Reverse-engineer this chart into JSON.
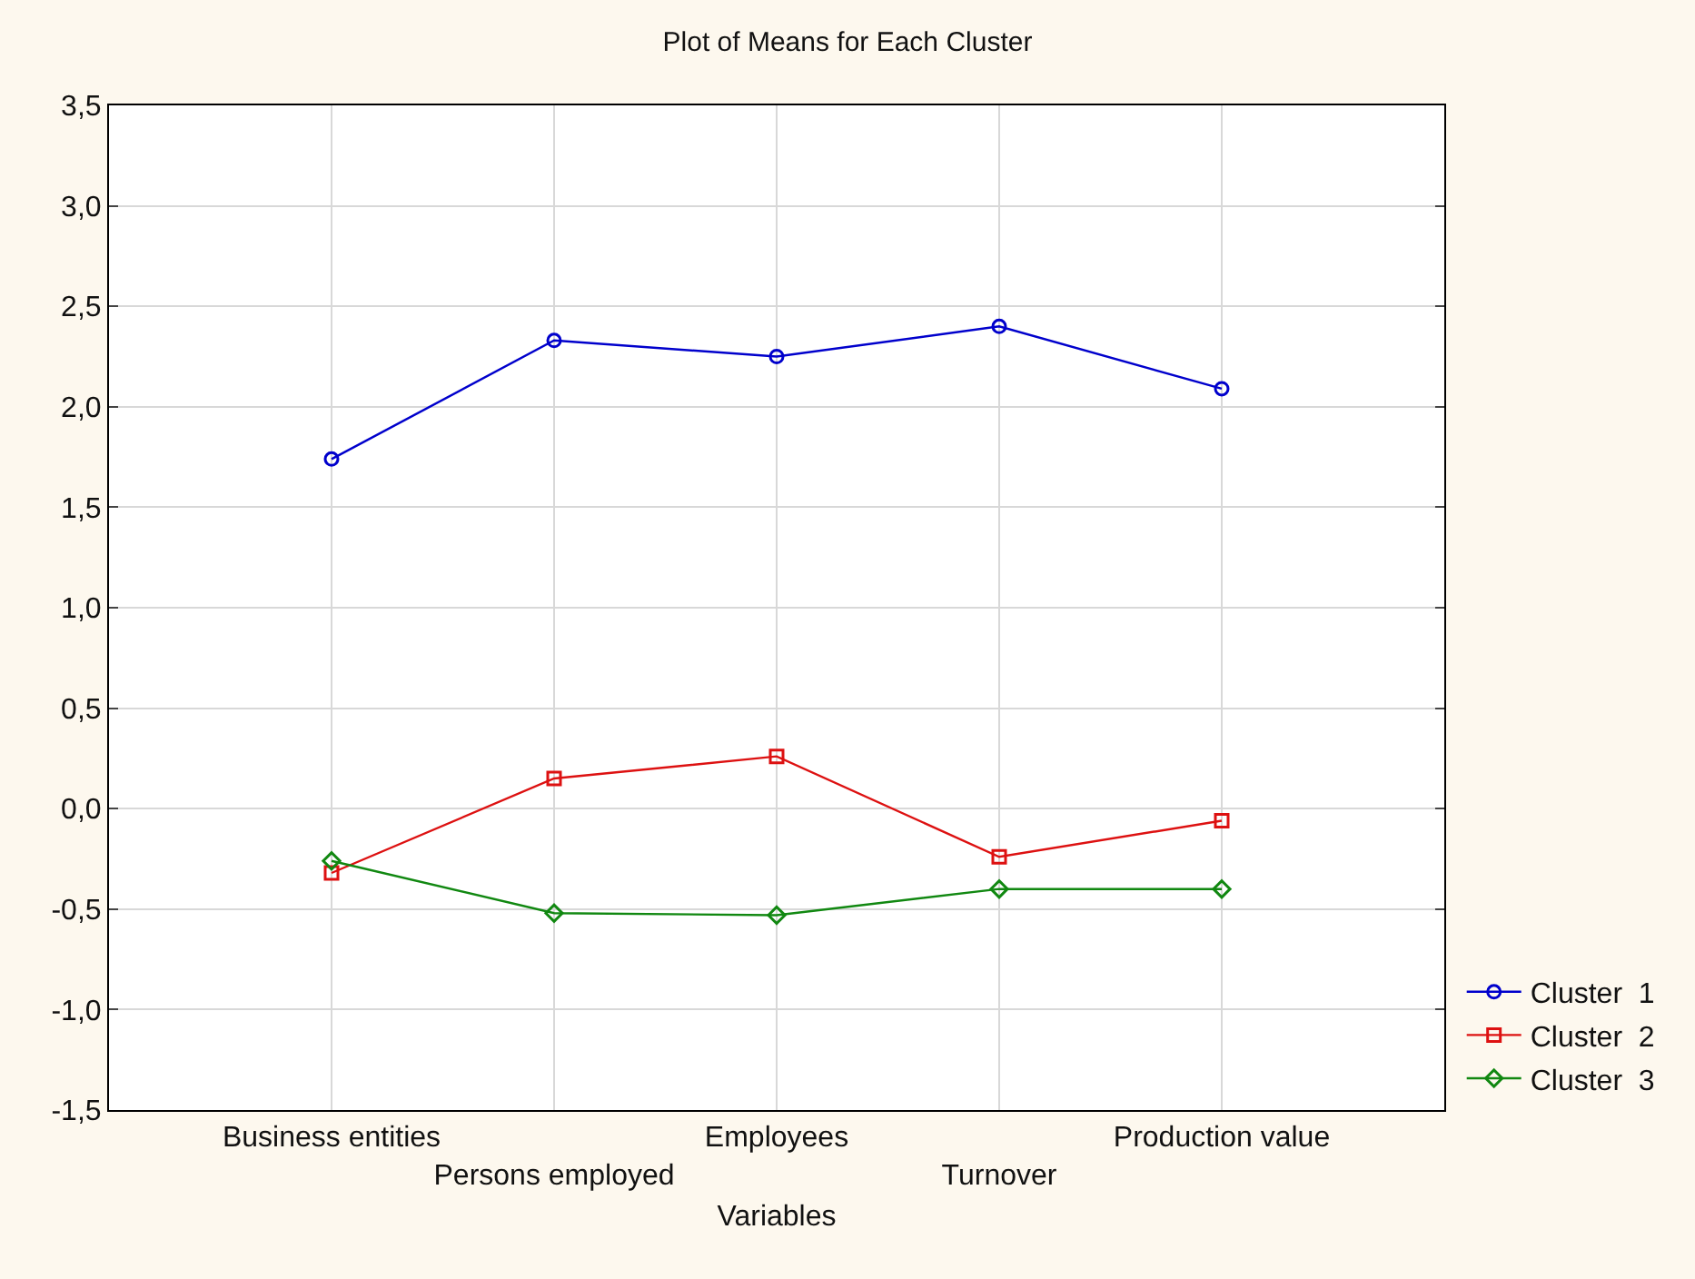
{
  "chart_data": {
    "type": "line",
    "title": "Plot of Means for Each Cluster",
    "xlabel": "Variables",
    "categories": [
      "Business entities",
      "Persons employed",
      "Employees",
      "Turnover",
      "Production value"
    ],
    "series": [
      {
        "name": "Cluster  1",
        "color": "#0000cc",
        "marker": "circle",
        "values": [
          1.74,
          2.33,
          2.25,
          2.4,
          2.09
        ]
      },
      {
        "name": "Cluster  2",
        "color": "#dd1111",
        "marker": "square",
        "values": [
          -0.32,
          0.15,
          0.26,
          -0.24,
          -0.06
        ]
      },
      {
        "name": "Cluster  3",
        "color": "#118811",
        "marker": "diamond",
        "values": [
          -0.26,
          -0.52,
          -0.53,
          -0.4,
          -0.4
        ]
      }
    ],
    "ylim": [
      -1.5,
      3.5
    ],
    "yticks": [
      {
        "value": -1.5,
        "label": "-1,5"
      },
      {
        "value": -1.0,
        "label": "-1,0"
      },
      {
        "value": -0.5,
        "label": "-0,5"
      },
      {
        "value": 0,
        "label": "0,0"
      },
      {
        "value": 0.5,
        "label": "0,5"
      },
      {
        "value": 1.0,
        "label": "1,0"
      },
      {
        "value": 1.5,
        "label": "1,5"
      },
      {
        "value": 2.0,
        "label": "2,0"
      },
      {
        "value": 2.5,
        "label": "2,5"
      },
      {
        "value": 3.0,
        "label": "3,0"
      },
      {
        "value": 3.5,
        "label": "3,5"
      }
    ],
    "grid": true,
    "legend": "bottom right",
    "line_style": "solid"
  }
}
